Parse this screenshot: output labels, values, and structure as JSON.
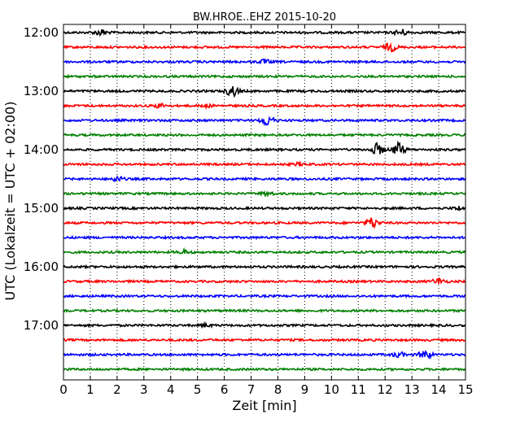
{
  "chart_data": {
    "type": "line",
    "title": "BW.HROE..EHZ 2015-10-20",
    "xlabel": "Zeit  [min]",
    "ylabel": "UTC (Lokalzeit = UTC + 02:00)",
    "xlim": [
      0,
      15
    ],
    "x_ticks": [
      "0",
      "1",
      "2",
      "3",
      "4",
      "5",
      "6",
      "7",
      "8",
      "9",
      "10",
      "11",
      "12",
      "13",
      "14",
      "15"
    ],
    "y_ticks": [
      "12:00",
      "13:00",
      "14:00",
      "15:00",
      "16:00",
      "17:00"
    ],
    "grid": "vertical dotted",
    "trace_interval_minutes": 15,
    "trace_colors": [
      "#000000",
      "#ff0000",
      "#0000ff",
      "#008000"
    ],
    "traces": [
      {
        "start": "12:00",
        "color": "#000000",
        "events": [
          {
            "t": 1.4,
            "amp": 0.5
          },
          {
            "t": 12.6,
            "amp": 0.5
          }
        ]
      },
      {
        "start": "12:15",
        "color": "#ff0000",
        "events": [
          {
            "t": 12.2,
            "amp": 0.7
          }
        ]
      },
      {
        "start": "12:30",
        "color": "#0000ff",
        "events": [
          {
            "t": 7.5,
            "amp": 0.3
          }
        ]
      },
      {
        "start": "12:45",
        "color": "#008000",
        "events": []
      },
      {
        "start": "13:00",
        "color": "#000000",
        "events": [
          {
            "t": 6.3,
            "amp": 0.9
          }
        ]
      },
      {
        "start": "13:15",
        "color": "#ff0000",
        "events": [
          {
            "t": 3.6,
            "amp": 0.3
          },
          {
            "t": 5.3,
            "amp": 0.2
          }
        ]
      },
      {
        "start": "13:30",
        "color": "#0000ff",
        "events": [
          {
            "t": 7.6,
            "amp": 0.9
          }
        ]
      },
      {
        "start": "13:45",
        "color": "#008000",
        "events": []
      },
      {
        "start": "14:00",
        "color": "#000000",
        "events": [
          {
            "t": 11.7,
            "amp": 1.0
          },
          {
            "t": 12.5,
            "amp": 1.1
          }
        ]
      },
      {
        "start": "14:15",
        "color": "#ff0000",
        "events": [
          {
            "t": 8.8,
            "amp": 0.2
          }
        ]
      },
      {
        "start": "14:30",
        "color": "#0000ff",
        "events": [
          {
            "t": 2.0,
            "amp": 0.4
          }
        ]
      },
      {
        "start": "14:45",
        "color": "#008000",
        "events": [
          {
            "t": 7.6,
            "amp": 0.3
          }
        ]
      },
      {
        "start": "15:00",
        "color": "#000000",
        "events": [
          {
            "t": 14.8,
            "amp": 0.3
          }
        ]
      },
      {
        "start": "15:15",
        "color": "#ff0000",
        "events": [
          {
            "t": 11.5,
            "amp": 0.9
          }
        ]
      },
      {
        "start": "15:30",
        "color": "#0000ff",
        "events": []
      },
      {
        "start": "15:45",
        "color": "#008000",
        "events": [
          {
            "t": 4.5,
            "amp": 0.3
          }
        ]
      },
      {
        "start": "16:00",
        "color": "#000000",
        "events": []
      },
      {
        "start": "16:15",
        "color": "#ff0000",
        "events": [
          {
            "t": 14.0,
            "amp": 0.5
          }
        ]
      },
      {
        "start": "16:30",
        "color": "#0000ff",
        "events": []
      },
      {
        "start": "16:45",
        "color": "#008000",
        "events": []
      },
      {
        "start": "17:00",
        "color": "#000000",
        "events": [
          {
            "t": 5.3,
            "amp": 0.2
          }
        ]
      },
      {
        "start": "17:15",
        "color": "#ff0000",
        "events": []
      },
      {
        "start": "17:30",
        "color": "#0000ff",
        "events": [
          {
            "t": 12.5,
            "amp": 0.4
          },
          {
            "t": 13.5,
            "amp": 0.7
          }
        ]
      },
      {
        "start": "17:45",
        "color": "#008000",
        "events": []
      }
    ]
  }
}
